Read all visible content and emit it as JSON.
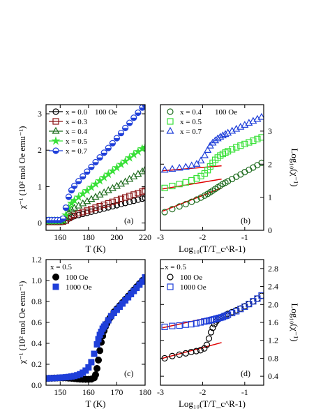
{
  "chart_data": [
    {
      "panel": "(a)",
      "type": "scatter",
      "note": "100 Oe",
      "xlabel": "T (K)",
      "ylabel": "χ⁻¹ (10² mol Oe emu⁻¹)",
      "xlim": [
        150,
        220
      ],
      "ylim": [
        -0.2,
        3.25
      ],
      "xticks": [
        160,
        180,
        200,
        220
      ],
      "yticks": [
        0,
        1,
        2,
        3
      ],
      "legend_location": "top-left",
      "colors": {
        "x0.0": "#000000",
        "x0.3": "#8b1414",
        "x0.4": "#1e6b1e",
        "x0.5": "#38e038",
        "x0.7": "#1f3fd9"
      },
      "series": [
        {
          "name": "x = 0.0",
          "marker": "circle",
          "x": [
            150,
            152,
            154,
            156,
            158,
            160,
            162,
            164,
            166,
            168,
            170,
            173,
            176,
            179,
            182,
            185,
            188,
            191,
            194,
            197,
            200,
            203,
            206,
            209,
            212,
            215,
            218,
            220
          ],
          "y": [
            0.03,
            0.03,
            0.03,
            0.03,
            0.03,
            0.03,
            0.04,
            0.06,
            0.12,
            0.16,
            0.19,
            0.22,
            0.25,
            0.28,
            0.31,
            0.34,
            0.37,
            0.4,
            0.43,
            0.46,
            0.49,
            0.52,
            0.55,
            0.58,
            0.61,
            0.64,
            0.67,
            0.69
          ]
        },
        {
          "name": "x = 0.3",
          "marker": "square",
          "x": [
            150,
            152,
            154,
            156,
            158,
            160,
            162,
            164,
            166,
            168,
            170,
            173,
            176,
            179,
            182,
            185,
            188,
            191,
            194,
            197,
            200,
            203,
            206,
            209,
            212,
            215,
            218,
            220
          ],
          "y": [
            0.03,
            0.03,
            0.03,
            0.03,
            0.03,
            0.03,
            0.04,
            0.07,
            0.14,
            0.19,
            0.23,
            0.27,
            0.3,
            0.34,
            0.38,
            0.42,
            0.46,
            0.5,
            0.54,
            0.58,
            0.62,
            0.66,
            0.7,
            0.74,
            0.78,
            0.82,
            0.86,
            0.89
          ]
        },
        {
          "name": "x = 0.4",
          "marker": "triangle",
          "x": [
            150,
            152,
            154,
            156,
            158,
            160,
            162,
            164,
            166,
            168,
            170,
            173,
            176,
            179,
            182,
            185,
            188,
            191,
            194,
            197,
            200,
            203,
            206,
            209,
            212,
            215,
            218,
            220
          ],
          "y": [
            0.04,
            0.04,
            0.04,
            0.04,
            0.04,
            0.04,
            0.06,
            0.15,
            0.28,
            0.36,
            0.41,
            0.47,
            0.53,
            0.59,
            0.65,
            0.71,
            0.77,
            0.83,
            0.89,
            0.95,
            1.01,
            1.07,
            1.13,
            1.2,
            1.27,
            1.34,
            1.41,
            1.46
          ]
        },
        {
          "name": "x = 0.5",
          "marker": "star",
          "x": [
            150,
            152,
            154,
            156,
            158,
            160,
            162,
            164,
            166,
            168,
            170,
            173,
            176,
            179,
            182,
            185,
            188,
            191,
            194,
            197,
            200,
            203,
            206,
            209,
            212,
            215,
            218,
            220
          ],
          "y": [
            0.06,
            0.06,
            0.06,
            0.06,
            0.06,
            0.06,
            0.08,
            0.22,
            0.42,
            0.54,
            0.62,
            0.71,
            0.8,
            0.89,
            0.98,
            1.07,
            1.16,
            1.25,
            1.34,
            1.43,
            1.52,
            1.61,
            1.7,
            1.79,
            1.88,
            1.96,
            2.04,
            2.08
          ]
        },
        {
          "name": "x = 0.7",
          "marker": "half-circle",
          "x": [
            150,
            152,
            154,
            156,
            158,
            160,
            162,
            164,
            166,
            168,
            170,
            173,
            176,
            179,
            182,
            185,
            188,
            191,
            194,
            197,
            200,
            203,
            206,
            209,
            212,
            215,
            218,
            220
          ],
          "y": [
            0.08,
            0.08,
            0.08,
            0.08,
            0.08,
            0.08,
            0.12,
            0.42,
            0.72,
            0.9,
            1.02,
            1.15,
            1.28,
            1.41,
            1.54,
            1.67,
            1.8,
            1.93,
            2.06,
            2.19,
            2.33,
            2.47,
            2.61,
            2.75,
            2.89,
            3.03,
            3.17,
            3.25
          ]
        }
      ]
    },
    {
      "panel": "(b)",
      "type": "scatter",
      "note": "100 Oe",
      "xlabel": "Log₁₀(T/T_c^R-1)",
      "ylabel": "Log₁₀(χ⁻¹)",
      "xlim": [
        -3.0,
        -0.55
      ],
      "ylim": [
        0,
        3.8
      ],
      "xticks": [
        -3,
        -2,
        -1
      ],
      "yticks": [
        0,
        1,
        2,
        3
      ],
      "yaxis_side": "right",
      "legend_location": "top-left",
      "colors": {
        "x0.4": "#1e6b1e",
        "x0.5": "#38e038",
        "x0.7": "#1f3fd9",
        "fit": "#e00000"
      },
      "series": [
        {
          "name": "x = 0.4",
          "marker": "circle",
          "x": [
            -2.9,
            -2.72,
            -2.55,
            -2.4,
            -2.26,
            -2.14,
            -2.04,
            -1.95,
            -1.88,
            -1.82,
            -1.76,
            -1.7,
            -1.64,
            -1.58,
            -1.52,
            -1.46,
            -1.4,
            -1.3,
            -1.2,
            -1.1,
            -1.0,
            -0.9,
            -0.8,
            -0.7,
            -0.6
          ],
          "y": [
            0.55,
            0.64,
            0.72,
            0.79,
            0.86,
            0.93,
            0.99,
            1.05,
            1.1,
            1.15,
            1.2,
            1.25,
            1.3,
            1.35,
            1.4,
            1.44,
            1.48,
            1.55,
            1.62,
            1.69,
            1.76,
            1.83,
            1.9,
            1.97,
            2.04
          ]
        },
        {
          "name": "x = 0.5",
          "marker": "square",
          "x": [
            -2.9,
            -2.72,
            -2.55,
            -2.4,
            -2.26,
            -2.14,
            -2.04,
            -1.95,
            -1.88,
            -1.82,
            -1.76,
            -1.7,
            -1.64,
            -1.58,
            -1.52,
            -1.46,
            -1.4,
            -1.3,
            -1.2,
            -1.1,
            -1.0,
            -0.9,
            -0.8,
            -0.7,
            -0.6
          ],
          "y": [
            1.28,
            1.34,
            1.4,
            1.45,
            1.51,
            1.57,
            1.64,
            1.72,
            1.82,
            1.93,
            2.04,
            2.13,
            2.2,
            2.26,
            2.31,
            2.35,
            2.39,
            2.45,
            2.51,
            2.56,
            2.61,
            2.66,
            2.71,
            2.76,
            2.81
          ]
        },
        {
          "name": "x = 0.7",
          "marker": "triangle",
          "x": [
            -2.9,
            -2.72,
            -2.55,
            -2.4,
            -2.26,
            -2.14,
            -2.04,
            -1.95,
            -1.88,
            -1.82,
            -1.76,
            -1.7,
            -1.64,
            -1.58,
            -1.52,
            -1.46,
            -1.4,
            -1.3,
            -1.2,
            -1.1,
            -1.0,
            -0.9,
            -0.8,
            -0.7,
            -0.6
          ],
          "y": [
            1.82,
            1.85,
            1.88,
            1.91,
            1.95,
            2.0,
            2.1,
            2.26,
            2.42,
            2.55,
            2.64,
            2.71,
            2.77,
            2.82,
            2.86,
            2.9,
            2.94,
            3.0,
            3.06,
            3.12,
            3.18,
            3.24,
            3.3,
            3.36,
            3.42
          ]
        }
      ],
      "fit_lines": [
        {
          "x": [
            -2.95,
            -1.55
          ],
          "y": [
            0.58,
            1.28
          ]
        },
        {
          "x": [
            -2.95,
            -1.55
          ],
          "y": [
            1.25,
            1.55
          ]
        },
        {
          "x": [
            -2.95,
            -1.55
          ],
          "y": [
            1.8,
            1.95
          ]
        }
      ]
    },
    {
      "panel": "(c)",
      "type": "scatter",
      "legend_title": "x = 0.5",
      "xlabel": "T (K)",
      "ylabel": "χ⁻¹ (10² mol Oe emu⁻¹)",
      "xlim": [
        145,
        180
      ],
      "ylim": [
        0.0,
        1.2
      ],
      "xticks": [
        150,
        160,
        170,
        180
      ],
      "yticks": [
        0.0,
        0.2,
        0.4,
        0.6,
        0.8,
        1.0,
        1.2
      ],
      "legend_location": "top-left",
      "colors": {
        "h100": "#000000",
        "h1000": "#1f3fd9"
      },
      "series": [
        {
          "name": "100 Oe",
          "marker": "circle",
          "x": [
            145,
            146,
            147,
            148,
            149,
            150,
            151,
            152,
            153,
            154,
            155,
            156,
            157,
            158,
            159,
            160,
            161,
            162,
            162.5,
            163,
            163.5,
            164,
            164.5,
            165,
            165.5,
            166,
            166.5,
            167,
            167.5,
            168,
            169,
            170,
            171,
            172,
            173,
            174,
            175,
            176,
            177,
            178,
            179,
            180
          ],
          "y": [
            0.065,
            0.066,
            0.067,
            0.068,
            0.069,
            0.07,
            0.07,
            0.07,
            0.068,
            0.066,
            0.063,
            0.06,
            0.058,
            0.057,
            0.056,
            0.056,
            0.058,
            0.07,
            0.1,
            0.16,
            0.24,
            0.33,
            0.41,
            0.47,
            0.52,
            0.56,
            0.59,
            0.62,
            0.64,
            0.66,
            0.7,
            0.73,
            0.76,
            0.79,
            0.82,
            0.85,
            0.88,
            0.91,
            0.94,
            0.97,
            1.0,
            1.02
          ]
        },
        {
          "name": "1000 Oe",
          "marker": "square",
          "x": [
            145,
            146,
            147,
            148,
            149,
            150,
            151,
            152,
            153,
            154,
            155,
            156,
            157,
            158,
            159,
            160,
            161,
            162,
            163,
            163.5,
            164,
            164.5,
            165,
            165.5,
            166,
            167,
            168,
            169,
            170,
            171,
            172,
            173,
            174,
            175,
            176,
            177,
            178,
            179,
            180
          ],
          "y": [
            0.065,
            0.066,
            0.067,
            0.068,
            0.07,
            0.072,
            0.074,
            0.076,
            0.079,
            0.083,
            0.088,
            0.095,
            0.105,
            0.12,
            0.14,
            0.17,
            0.22,
            0.3,
            0.39,
            0.44,
            0.48,
            0.51,
            0.54,
            0.56,
            0.58,
            0.62,
            0.66,
            0.69,
            0.72,
            0.75,
            0.78,
            0.81,
            0.84,
            0.87,
            0.9,
            0.93,
            0.96,
            0.99,
            1.03
          ]
        }
      ]
    },
    {
      "panel": "(d)",
      "type": "scatter",
      "legend_title": "x = 0.5",
      "xlabel": "Log₁₀(T/T_c^R-1)",
      "ylabel": "Log₁₀(χ⁻¹)",
      "xlim": [
        -3.0,
        -0.55
      ],
      "ylim": [
        0.2,
        3.0
      ],
      "xticks": [
        -3,
        -2,
        -1
      ],
      "yticks": [
        0.4,
        0.8,
        1.2,
        1.6,
        2.0,
        2.4,
        2.8
      ],
      "yaxis_side": "right",
      "legend_location": "top-left",
      "colors": {
        "h100": "#000000",
        "h1000": "#1f3fd9",
        "fit": "#e00000"
      },
      "series": [
        {
          "name": "100 Oe",
          "marker": "circle",
          "x": [
            -2.9,
            -2.72,
            -2.55,
            -2.4,
            -2.27,
            -2.15,
            -2.05,
            -1.96,
            -1.9,
            -1.85,
            -1.8,
            -1.76,
            -1.72,
            -1.68,
            -1.64,
            -1.6,
            -1.56,
            -1.52,
            -1.48,
            -1.44,
            -1.4,
            -1.3,
            -1.2,
            -1.1,
            -1.0,
            -0.9,
            -0.8,
            -0.7,
            -0.6
          ],
          "y": [
            0.8,
            0.85,
            0.88,
            0.91,
            0.94,
            0.96,
            0.98,
            1.02,
            1.1,
            1.24,
            1.38,
            1.48,
            1.56,
            1.62,
            1.66,
            1.69,
            1.71,
            1.73,
            1.75,
            1.77,
            1.79,
            1.83,
            1.87,
            1.91,
            1.96,
            2.01,
            2.07,
            2.13,
            2.19
          ]
        },
        {
          "name": "1000 Oe",
          "marker": "square",
          "x": [
            -2.9,
            -2.72,
            -2.55,
            -2.4,
            -2.27,
            -2.15,
            -2.05,
            -1.96,
            -1.9,
            -1.85,
            -1.8,
            -1.76,
            -1.72,
            -1.68,
            -1.64,
            -1.6,
            -1.56,
            -1.52,
            -1.48,
            -1.44,
            -1.4,
            -1.3,
            -1.2,
            -1.1,
            -1.0,
            -0.9,
            -0.8,
            -0.7,
            -0.6
          ],
          "y": [
            1.5,
            1.52,
            1.53,
            1.55,
            1.56,
            1.58,
            1.6,
            1.62,
            1.63,
            1.64,
            1.65,
            1.66,
            1.67,
            1.68,
            1.69,
            1.7,
            1.71,
            1.72,
            1.74,
            1.75,
            1.77,
            1.81,
            1.85,
            1.9,
            1.95,
            2.01,
            2.07,
            2.13,
            2.2
          ]
        }
      ],
      "fit_lines": [
        {
          "x": [
            -2.95,
            -1.55
          ],
          "y": [
            0.8,
            1.15
          ]
        },
        {
          "x": [
            -2.95,
            -1.5
          ],
          "y": [
            1.48,
            1.78
          ]
        }
      ]
    }
  ],
  "panel_labels": [
    "(a)",
    "(b)",
    "(c)",
    "(d)"
  ]
}
